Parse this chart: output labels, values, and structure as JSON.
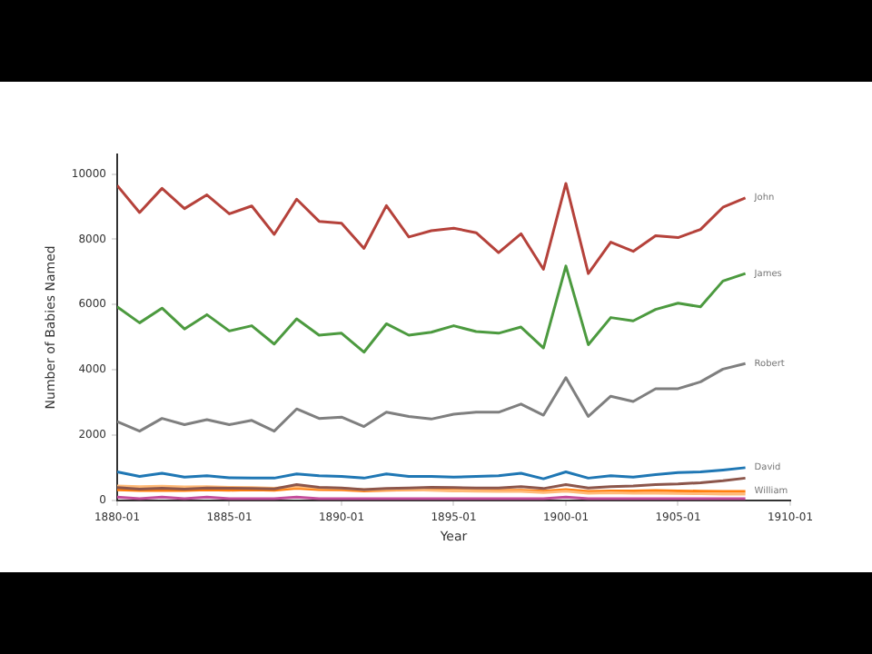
{
  "chart_data": {
    "type": "line",
    "xlabel": "Year",
    "ylabel": "Number of Babies Named",
    "x": [
      "1880-01",
      "1881-01",
      "1882-01",
      "1883-01",
      "1884-01",
      "1885-01",
      "1886-01",
      "1887-01",
      "1888-01",
      "1889-01",
      "1890-01",
      "1891-01",
      "1892-01",
      "1893-01",
      "1894-01",
      "1895-01",
      "1896-01",
      "1897-01",
      "1898-01",
      "1899-01",
      "1900-01",
      "1901-01",
      "1902-01",
      "1903-01",
      "1904-01",
      "1905-01",
      "1906-01",
      "1907-01",
      "1908-01"
    ],
    "xlim": [
      "1880-01",
      "1910-01"
    ],
    "xticks": [
      "1880-01",
      "1885-01",
      "1890-01",
      "1895-01",
      "1900-01",
      "1905-01",
      "1910-01"
    ],
    "ylim": [
      0,
      10600
    ],
    "yticks": [
      0,
      2000,
      4000,
      6000,
      8000,
      10000
    ],
    "grid": false,
    "legend": false,
    "marker": "none",
    "line_style": "solid",
    "series": [
      {
        "name": "John",
        "color": "#b5423b",
        "values": [
          9650,
          8820,
          9560,
          8940,
          9360,
          8780,
          9020,
          8150,
          9230,
          8550,
          8490,
          7720,
          9030,
          8070,
          8260,
          8340,
          8200,
          7590,
          8170,
          7080,
          9710,
          6950,
          7910,
          7630,
          8110,
          8050,
          8300,
          8980,
          9270
        ]
      },
      {
        "name": "James",
        "color": "#4c9a3f",
        "values": [
          5930,
          5440,
          5890,
          5250,
          5690,
          5190,
          5350,
          4790,
          5560,
          5060,
          5120,
          4540,
          5410,
          5060,
          5150,
          5350,
          5170,
          5120,
          5310,
          4670,
          7180,
          4770,
          5600,
          5500,
          5850,
          6040,
          5930,
          6720,
          6950
        ]
      },
      {
        "name": "Robert",
        "color": "#7f7f7f",
        "values": [
          2410,
          2120,
          2510,
          2320,
          2470,
          2320,
          2450,
          2120,
          2800,
          2510,
          2550,
          2260,
          2700,
          2570,
          2490,
          2640,
          2700,
          2700,
          2950,
          2610,
          3760,
          2570,
          3190,
          3030,
          3420,
          3420,
          3630,
          4020,
          4190
        ]
      },
      {
        "name": "David",
        "color": "#1f77b4",
        "values": [
          870,
          730,
          830,
          710,
          750,
          690,
          680,
          680,
          810,
          750,
          730,
          680,
          810,
          730,
          730,
          710,
          730,
          750,
          830,
          660,
          870,
          680,
          750,
          710,
          790,
          850,
          870,
          930,
          1000
        ]
      },
      {
        "color": "#8c564b",
        "values": [
          390,
          340,
          370,
          340,
          380,
          370,
          360,
          350,
          480,
          400,
          380,
          330,
          360,
          380,
          400,
          390,
          380,
          380,
          420,
          360,
          480,
          380,
          420,
          440,
          480,
          500,
          540,
          600,
          680
        ]
      },
      {
        "color": "#ffbb78",
        "values": [
          440,
          420,
          430,
          410,
          420,
          400,
          390,
          370,
          420,
          380,
          360,
          320,
          330,
          330,
          310,
          290,
          280,
          270,
          270,
          240,
          280,
          220,
          230,
          220,
          220,
          210,
          200,
          190,
          190
        ]
      },
      {
        "color": "#ff7f0e",
        "values": [
          320,
          300,
          310,
          300,
          320,
          310,
          320,
          310,
          370,
          330,
          320,
          290,
          310,
          320,
          320,
          310,
          300,
          300,
          310,
          280,
          330,
          270,
          290,
          290,
          300,
          290,
          280,
          270,
          270
        ]
      },
      {
        "name": "William",
        "color": "#c44e9c",
        "values": [
          100,
          50,
          100,
          50,
          100,
          50,
          50,
          50,
          100,
          50,
          50,
          50,
          50,
          50,
          50,
          50,
          50,
          50,
          50,
          50,
          100,
          50,
          50,
          50,
          50,
          50,
          50,
          50,
          50
        ]
      }
    ]
  }
}
